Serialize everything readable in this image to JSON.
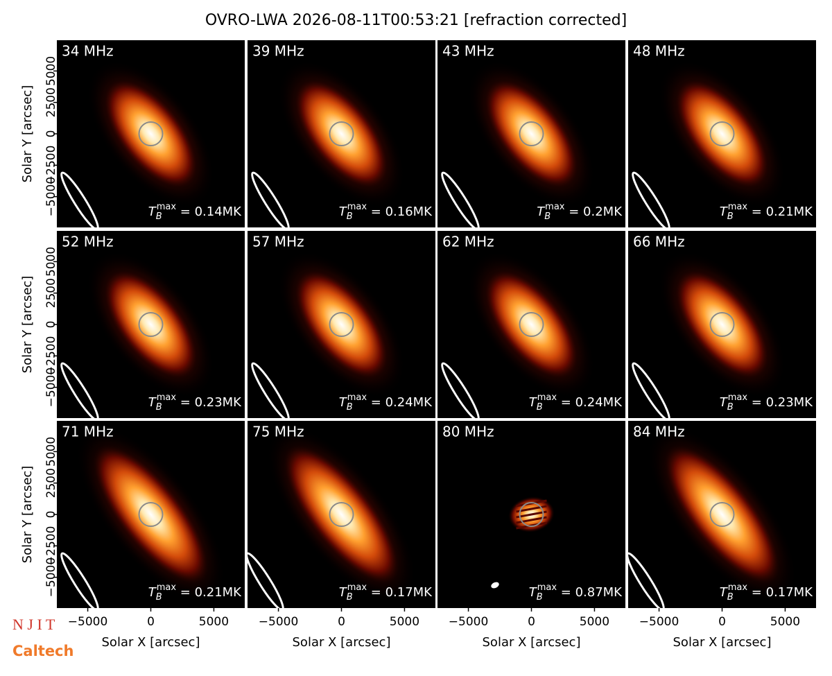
{
  "chart_data": {
    "type": "image_grid",
    "title": "OVRO-LWA 2026-08-11T00:53:21 [refraction corrected]",
    "xlabel": "Solar X [arcsec]",
    "ylabel": "Solar Y [arcsec]",
    "xlim": [
      -7450,
      7450
    ],
    "ylim": [
      -7450,
      7450
    ],
    "xticks": [
      {
        "value": -5000,
        "label": "−5000"
      },
      0,
      5000
    ],
    "yticks": [
      {
        "value": -5000,
        "label": "−5000"
      },
      {
        "value": -2500,
        "label": "−2500"
      },
      0,
      2500,
      5000
    ],
    "tb_label": {
      "symbol": "T",
      "sub": "B",
      "sup": "max",
      "eq": " = "
    },
    "panels": [
      {
        "label": "34 MHz",
        "tb_max": "0.14MK"
      },
      {
        "label": "39 MHz",
        "tb_max": "0.16MK"
      },
      {
        "label": "43 MHz",
        "tb_max": "0.2MK"
      },
      {
        "label": "48 MHz",
        "tb_max": "0.21MK"
      },
      {
        "label": "52 MHz",
        "tb_max": "0.23MK"
      },
      {
        "label": "57 MHz",
        "tb_max": "0.24MK"
      },
      {
        "label": "62 MHz",
        "tb_max": "0.24MK"
      },
      {
        "label": "66 MHz",
        "tb_max": "0.23MK"
      },
      {
        "label": "71 MHz",
        "tb_max": "0.21MK"
      },
      {
        "label": "75 MHz",
        "tb_max": "0.17MK"
      },
      {
        "label": "80 MHz",
        "tb_max": "0.87MK"
      },
      {
        "label": "84 MHz",
        "tb_max": "0.17MK"
      }
    ],
    "logos": [
      "N J I T",
      "Caltech"
    ]
  }
}
